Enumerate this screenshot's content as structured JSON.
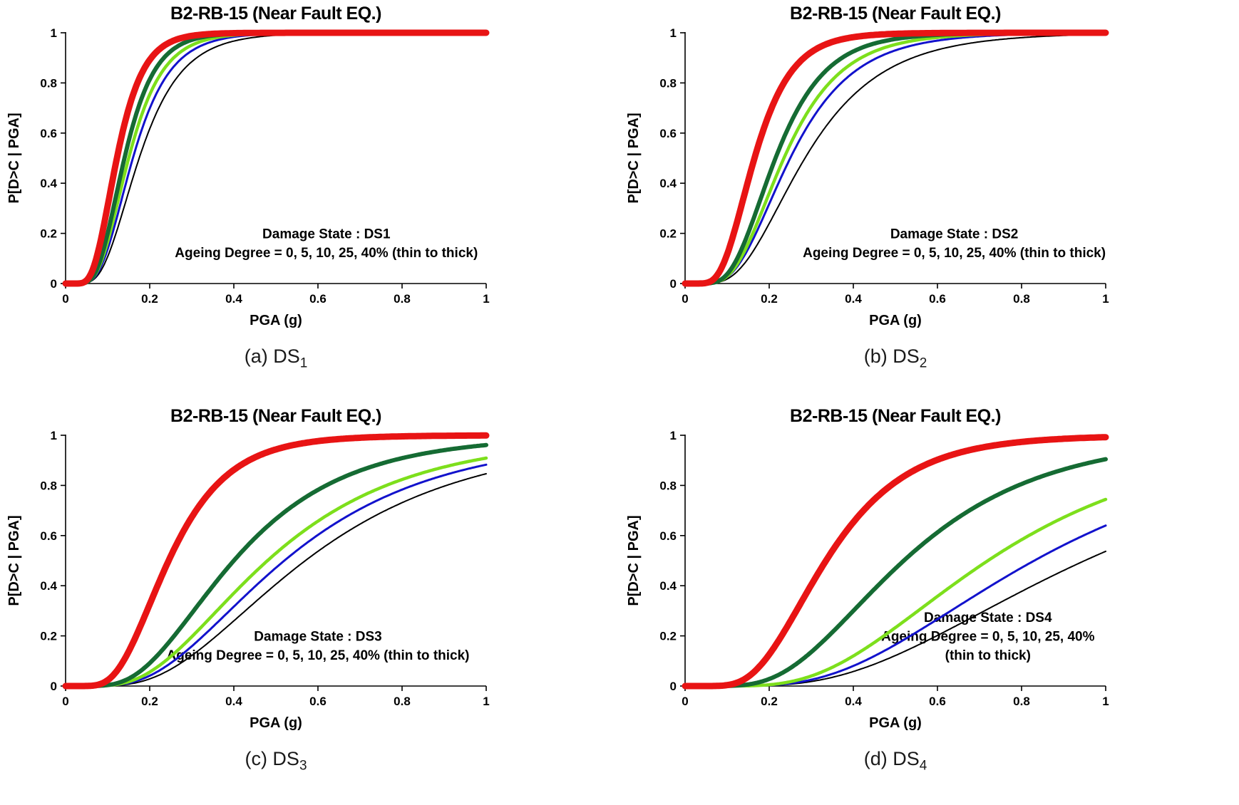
{
  "page": {
    "background": "#ffffff"
  },
  "chart_data": [
    {
      "type": "line",
      "panel": "a",
      "title": "B2-RB-15 (Near Fault EQ.)",
      "caption": {
        "text": "(a) DS",
        "sub": "1"
      },
      "xlabel": "PGA (g)",
      "ylabel": "P[D>C | PGA]",
      "xlim": [
        0,
        1
      ],
      "ylim": [
        0,
        1
      ],
      "xticks": [
        0,
        0.2,
        0.4,
        0.6,
        0.8,
        1
      ],
      "yticks": [
        0,
        0.2,
        0.4,
        0.6,
        0.8,
        1
      ],
      "grid": false,
      "legend_position": "none",
      "curve_model": "lognormal_cdf",
      "annotation": {
        "lines": [
          "Damage State : DS1",
          "Ageing Degree = 0, 5, 10, 25, 40% (thin to thick)"
        ],
        "x": 0.62,
        "line_y": [
          0.82,
          0.895
        ]
      },
      "series": [
        {
          "name": "Ageing 0% (thin)",
          "color": "#000000",
          "width": 2,
          "median": 0.175,
          "beta": 0.45
        },
        {
          "name": "Ageing 5%",
          "color": "#1212cc",
          "width": 3,
          "median": 0.16,
          "beta": 0.43
        },
        {
          "name": "Ageing 10%",
          "color": "#7ddf1c",
          "width": 4.5,
          "median": 0.15,
          "beta": 0.42
        },
        {
          "name": "Ageing 25%",
          "color": "#156b33",
          "width": 6,
          "median": 0.14,
          "beta": 0.4
        },
        {
          "name": "Ageing 40% (thick)",
          "color": "#e81414",
          "width": 9,
          "median": 0.122,
          "beta": 0.4
        }
      ]
    },
    {
      "type": "line",
      "panel": "b",
      "title": "B2-RB-15 (Near Fault EQ.)",
      "caption": {
        "text": "(b) DS",
        "sub": "2"
      },
      "xlabel": "PGA (g)",
      "ylabel": "P[D>C | PGA]",
      "xlim": [
        0,
        1
      ],
      "ylim": [
        0,
        1
      ],
      "xticks": [
        0,
        0.2,
        0.4,
        0.6,
        0.8,
        1
      ],
      "yticks": [
        0,
        0.2,
        0.4,
        0.6,
        0.8,
        1
      ],
      "grid": false,
      "legend_position": "none",
      "curve_model": "lognormal_cdf",
      "annotation": {
        "lines": [
          "Damage State : DS2",
          "Ageing Degree = 0, 5, 10, 25, 40% (thin to thick)"
        ],
        "x": 0.64,
        "line_y": [
          0.82,
          0.895
        ]
      },
      "series": [
        {
          "name": "Ageing 0% (thin)",
          "color": "#000000",
          "width": 2,
          "median": 0.285,
          "beta": 0.5
        },
        {
          "name": "Ageing 5%",
          "color": "#1212cc",
          "width": 3,
          "median": 0.25,
          "beta": 0.47
        },
        {
          "name": "Ageing 10%",
          "color": "#7ddf1c",
          "width": 4.5,
          "median": 0.235,
          "beta": 0.45
        },
        {
          "name": "Ageing 25%",
          "color": "#156b33",
          "width": 6,
          "median": 0.215,
          "beta": 0.43
        },
        {
          "name": "Ageing 40% (thick)",
          "color": "#e81414",
          "width": 9,
          "median": 0.165,
          "beta": 0.42
        }
      ]
    },
    {
      "type": "line",
      "panel": "c",
      "title": "B2-RB-15 (Near Fault EQ.)",
      "caption": {
        "text": "(c) DS",
        "sub": "3"
      },
      "xlabel": "PGA (g)",
      "ylabel": "P[D>C | PGA]",
      "xlim": [
        0,
        1
      ],
      "ylim": [
        0,
        1
      ],
      "xticks": [
        0,
        0.2,
        0.4,
        0.6,
        0.8,
        1
      ],
      "yticks": [
        0,
        0.2,
        0.4,
        0.6,
        0.8,
        1
      ],
      "grid": false,
      "legend_position": "none",
      "curve_model": "lognormal_cdf",
      "annotation": {
        "lines": [
          "Damage State : DS3",
          "Ageing Degree = 0, 5, 10, 25, 40% (thin to thick)"
        ],
        "x": 0.6,
        "line_y": [
          0.82,
          0.895
        ]
      },
      "series": [
        {
          "name": "Ageing 0% (thin)",
          "color": "#000000",
          "width": 2,
          "median": 0.57,
          "beta": 0.55
        },
        {
          "name": "Ageing 5%",
          "color": "#1212cc",
          "width": 3,
          "median": 0.52,
          "beta": 0.55
        },
        {
          "name": "Ageing 10%",
          "color": "#7ddf1c",
          "width": 4.5,
          "median": 0.48,
          "beta": 0.55
        },
        {
          "name": "Ageing 25%",
          "color": "#156b33",
          "width": 6,
          "median": 0.4,
          "beta": 0.52
        },
        {
          "name": "Ageing 40% (thick)",
          "color": "#e81414",
          "width": 9,
          "median": 0.245,
          "beta": 0.45
        }
      ]
    },
    {
      "type": "line",
      "panel": "d",
      "title": "B2-RB-15 (Near Fault EQ.)",
      "caption": {
        "text": "(d) DS",
        "sub": "4"
      },
      "xlabel": "PGA (g)",
      "ylabel": "P[D>C | PGA]",
      "xlim": [
        0,
        1
      ],
      "ylim": [
        0,
        1
      ],
      "xticks": [
        0,
        0.2,
        0.4,
        0.6,
        0.8,
        1
      ],
      "yticks": [
        0,
        0.2,
        0.4,
        0.6,
        0.8,
        1
      ],
      "grid": false,
      "legend_position": "none",
      "curve_model": "lognormal_cdf",
      "annotation": {
        "lines": [
          "Damage State : DS4",
          "Ageing Degree = 0, 5, 10, 25, 40%",
          "(thin to thick)"
        ],
        "x": 0.72,
        "line_y": [
          0.745,
          0.82,
          0.895
        ]
      },
      "series": [
        {
          "name": "Ageing 0% (thin)",
          "color": "#000000",
          "width": 2,
          "median": 0.95,
          "beta": 0.55
        },
        {
          "name": "Ageing 5%",
          "color": "#1212cc",
          "width": 3,
          "median": 0.83,
          "beta": 0.52
        },
        {
          "name": "Ageing 10%",
          "color": "#7ddf1c",
          "width": 4.5,
          "median": 0.72,
          "beta": 0.5
        },
        {
          "name": "Ageing 25%",
          "color": "#156b33",
          "width": 6,
          "median": 0.52,
          "beta": 0.5
        },
        {
          "name": "Ageing 40% (thick)",
          "color": "#e81414",
          "width": 9,
          "median": 0.335,
          "beta": 0.45
        }
      ]
    }
  ]
}
